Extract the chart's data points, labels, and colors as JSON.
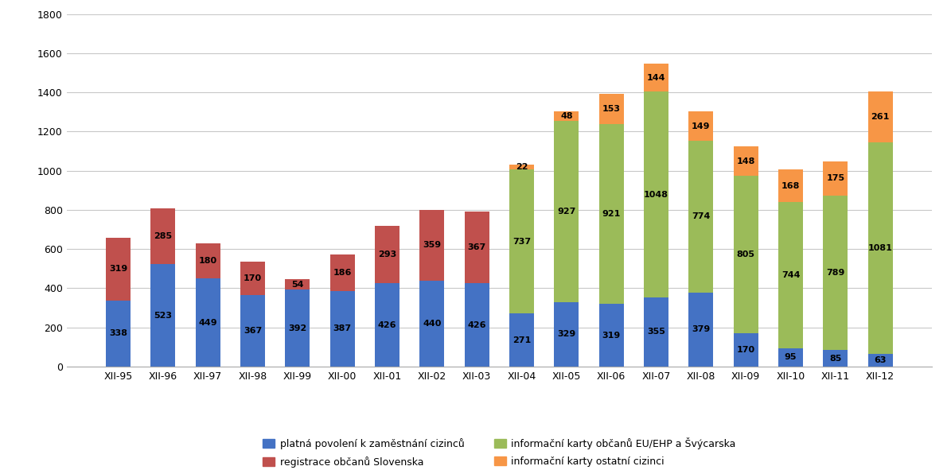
{
  "categories": [
    "XII-95",
    "XII-96",
    "XII-97",
    "XII-98",
    "XII-99",
    "XII-00",
    "XII-01",
    "XII-02",
    "XII-03",
    "XII-04",
    "XII-05",
    "XII-06",
    "XII-07",
    "XII-08",
    "XII-09",
    "XII-10",
    "XII-11",
    "XII-12"
  ],
  "blue": [
    338,
    523,
    449,
    367,
    392,
    387,
    426,
    440,
    426,
    271,
    329,
    319,
    355,
    379,
    170,
    95,
    85,
    63
  ],
  "red": [
    319,
    285,
    180,
    170,
    54,
    186,
    293,
    359,
    367,
    0,
    0,
    0,
    0,
    0,
    0,
    0,
    0,
    0
  ],
  "green": [
    0,
    0,
    0,
    0,
    0,
    0,
    0,
    0,
    0,
    737,
    927,
    921,
    1048,
    774,
    805,
    744,
    789,
    1081
  ],
  "orange": [
    0,
    0,
    0,
    0,
    0,
    0,
    0,
    0,
    0,
    22,
    48,
    153,
    144,
    149,
    148,
    168,
    175,
    261
  ],
  "blue_color": "#4472C4",
  "red_color": "#C0504D",
  "green_color": "#9BBB59",
  "orange_color": "#F79646",
  "legend_labels": [
    "platná povolení k zaměstnání cizinců",
    "registrace občanů Slovenska",
    "informační karty občanů EU/EHP a Švýcarska",
    "informační karty ostatní cizinci"
  ],
  "ylim": [
    0,
    1800
  ],
  "yticks": [
    0,
    200,
    400,
    600,
    800,
    1000,
    1200,
    1400,
    1600,
    1800
  ],
  "background_color": "#FFFFFF",
  "grid_color": "#C8C8C8",
  "bar_width": 0.55,
  "label_fontsize": 8,
  "tick_fontsize": 9
}
